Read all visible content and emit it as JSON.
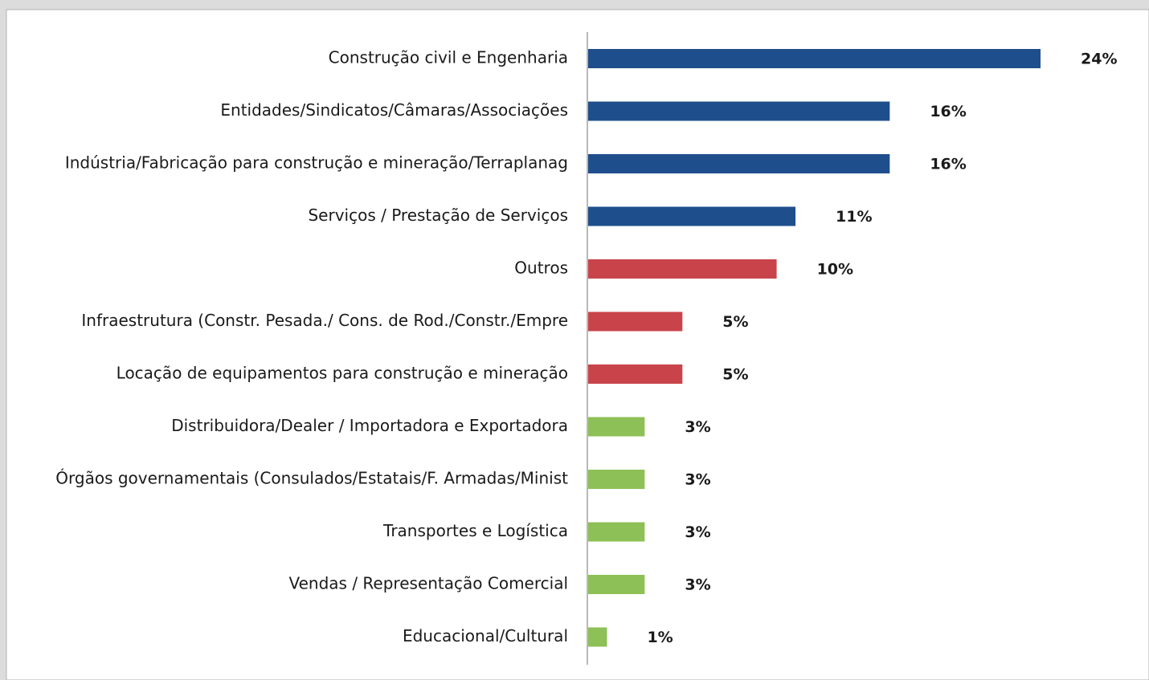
{
  "chart_data": {
    "type": "bar",
    "categories": [
      "Construção civil e Engenharia",
      "Entidades/Sindicatos/Câmaras/Associações",
      "Indústria/Fabricação para construção e mineração/Terraplanag",
      "Serviços / Prestação de Serviços",
      "Outros",
      "Infraestrutura (Constr. Pesada./ Cons. de Rod./Constr./Empre",
      "Locação de equipamentos para construção e mineração",
      "Distribuidora/Dealer / Importadora e Exportadora",
      "Órgãos governamentais (Consulados/Estatais/F. Armadas/Minist",
      "Transportes e Logística",
      "Vendas / Representação Comercial",
      "Educacional/Cultural"
    ],
    "values": [
      24,
      16,
      16,
      11,
      10,
      5,
      5,
      3,
      3,
      3,
      3,
      1
    ],
    "value_labels": [
      "24%",
      "16%",
      "16%",
      "11%",
      "10%",
      "5%",
      "5%",
      "3%",
      "3%",
      "3%",
      "3%",
      "1%"
    ],
    "colors": [
      "#1f4e8c",
      "#1f4e8c",
      "#1f4e8c",
      "#1f4e8c",
      "#c9444a",
      "#c9444a",
      "#c9444a",
      "#8dc056",
      "#8dc056",
      "#8dc056",
      "#8dc056",
      "#8dc056"
    ]
  }
}
